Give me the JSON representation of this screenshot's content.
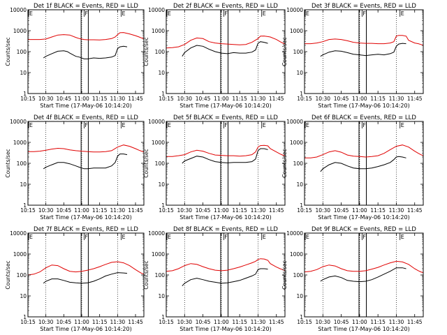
{
  "chart_data": {
    "type": "line",
    "layout": "3x3 grid of panels",
    "x_ticks": [
      "10:15",
      "10:30",
      "10:45",
      "11:00",
      "11:15",
      "11:30",
      "11:45"
    ],
    "x_tick_minutes": [
      15,
      30,
      45,
      60,
      75,
      90,
      105
    ],
    "xlim_minutes": [
      15,
      112
    ],
    "xlabel": "Start Time (17-May-06 10:14:20)",
    "ylabel": "Counts/sec",
    "yscale": "log",
    "ylim": [
      1,
      10000
    ],
    "y_ticks": [
      "1",
      "10",
      "100",
      "1000",
      "10000"
    ],
    "y_tick_values": [
      1,
      10,
      100,
      1000,
      10000
    ],
    "colors": {
      "events": "#000000",
      "lld": "#e00000",
      "axes": "#000000"
    },
    "markers": [
      {
        "label": "E",
        "minute": 15.5
      },
      {
        "label": "F",
        "minute": 62
      },
      {
        "label": "E",
        "minute": 93
      }
    ],
    "night_window_minutes": [
      59.5,
      65.5
    ],
    "dotted_lines_minutes": [
      30,
      60,
      90
    ],
    "panels": [
      {
        "title": "Det 1f BLACK = Events, RED = LLD",
        "series": [
          {
            "name": "LLD",
            "color": "#e00000",
            "x": [
              15,
              20,
              25,
              30,
              35,
              40,
              45,
              50,
              55,
              58,
              62,
              65,
              70,
              75,
              80,
              85,
              88,
              90,
              92,
              95,
              100,
              105,
              108,
              110,
              112
            ],
            "values": [
              380,
              380,
              380,
              400,
              500,
              620,
              650,
              620,
              480,
              420,
              380,
              370,
              370,
              360,
              380,
              420,
              500,
              650,
              800,
              820,
              700,
              580,
              500,
              450,
              420
            ]
          },
          {
            "name": "Events",
            "color": "#000000",
            "x": [
              28,
              30,
              35,
              40,
              45,
              48,
              50,
              55,
              58,
              62,
              65,
              70,
              75,
              80,
              85,
              88,
              90,
              92,
              95,
              98
            ],
            "values": [
              50,
              60,
              80,
              105,
              110,
              100,
              85,
              60,
              55,
              45,
              45,
              50,
              48,
              50,
              55,
              65,
              140,
              170,
              180,
              170
            ]
          }
        ]
      },
      {
        "title": "Det 2f BLACK = Events, RED = LLD",
        "series": [
          {
            "name": "LLD",
            "color": "#e00000",
            "x": [
              15,
              20,
              25,
              30,
              35,
              40,
              45,
              50,
              55,
              60,
              65,
              70,
              75,
              80,
              85,
              90,
              92,
              95,
              100,
              105,
              108,
              110,
              112
            ],
            "values": [
              150,
              155,
              170,
              220,
              350,
              450,
              420,
              300,
              260,
              240,
              230,
              220,
              210,
              220,
              280,
              420,
              550,
              560,
              500,
              380,
              300,
              260,
              230
            ]
          },
          {
            "name": "Events",
            "color": "#000000",
            "x": [
              28,
              30,
              35,
              40,
              45,
              50,
              55,
              60,
              65,
              70,
              75,
              80,
              85,
              88,
              90,
              92,
              95,
              98
            ],
            "values": [
              60,
              90,
              150,
              200,
              180,
              130,
              100,
              85,
              80,
              90,
              85,
              85,
              95,
              120,
              250,
              300,
              280,
              250
            ]
          }
        ]
      },
      {
        "title": "Det 3f BLACK = Events, RED = LLD",
        "series": [
          {
            "name": "LLD",
            "color": "#e00000",
            "x": [
              15,
              20,
              25,
              30,
              35,
              40,
              45,
              50,
              55,
              60,
              65,
              70,
              75,
              80,
              85,
              88,
              90,
              92,
              95,
              98,
              100,
              105,
              108,
              110,
              112
            ],
            "values": [
              240,
              240,
              260,
              300,
              380,
              400,
              380,
              330,
              280,
              260,
              250,
              250,
              240,
              240,
              260,
              300,
              550,
              600,
              600,
              550,
              350,
              260,
              240,
              220,
              200
            ]
          },
          {
            "name": "Events",
            "color": "#000000",
            "x": [
              28,
              30,
              35,
              40,
              45,
              50,
              55,
              60,
              65,
              70,
              75,
              80,
              85,
              88,
              90,
              92,
              95,
              98
            ],
            "values": [
              60,
              70,
              95,
              110,
              105,
              90,
              75,
              70,
              65,
              70,
              75,
              70,
              80,
              95,
              180,
              230,
              250,
              240
            ]
          }
        ]
      },
      {
        "title": "Det 4f BLACK = Events, RED = LLD",
        "series": [
          {
            "name": "LLD",
            "color": "#e00000",
            "x": [
              15,
              20,
              25,
              30,
              35,
              40,
              45,
              50,
              55,
              60,
              65,
              70,
              75,
              80,
              85,
              90,
              95,
              100,
              105,
              108,
              110,
              112
            ],
            "values": [
              360,
              360,
              380,
              420,
              480,
              520,
              500,
              440,
              400,
              380,
              360,
              350,
              350,
              360,
              400,
              600,
              750,
              650,
              500,
              420,
              380,
              350
            ]
          },
          {
            "name": "Events",
            "color": "#000000",
            "x": [
              28,
              30,
              35,
              40,
              45,
              50,
              55,
              58,
              62,
              65,
              70,
              75,
              80,
              85,
              88,
              90,
              92,
              95,
              98
            ],
            "values": [
              55,
              65,
              85,
              110,
              110,
              95,
              75,
              65,
              55,
              55,
              60,
              60,
              60,
              75,
              110,
              220,
              280,
              280,
              260
            ]
          }
        ]
      },
      {
        "title": "Det 5f BLACK = Events, RED = LLD",
        "series": [
          {
            "name": "LLD",
            "color": "#e00000",
            "x": [
              15,
              20,
              25,
              30,
              35,
              40,
              45,
              50,
              55,
              60,
              65,
              70,
              75,
              80,
              85,
              88,
              90,
              92,
              95,
              98,
              100,
              105,
              108,
              110,
              112
            ],
            "values": [
              210,
              210,
              230,
              260,
              350,
              420,
              380,
              300,
              250,
              240,
              230,
              230,
              220,
              230,
              260,
              350,
              600,
              700,
              720,
              680,
              500,
              350,
              280,
              250,
              230
            ]
          },
          {
            "name": "Events",
            "color": "#000000",
            "x": [
              28,
              30,
              35,
              40,
              45,
              50,
              55,
              60,
              65,
              70,
              75,
              80,
              85,
              88,
              90,
              92,
              95,
              98
            ],
            "values": [
              100,
              130,
              170,
              220,
              200,
              150,
              120,
              110,
              105,
              110,
              110,
              110,
              120,
              160,
              400,
              500,
              500,
              450
            ]
          }
        ]
      },
      {
        "title": "Det 6f BLACK = Events, RED = LLD",
        "series": [
          {
            "name": "LLD",
            "color": "#e00000",
            "x": [
              15,
              20,
              25,
              30,
              35,
              40,
              45,
              50,
              55,
              60,
              65,
              70,
              75,
              80,
              85,
              90,
              95,
              100,
              105,
              108,
              110,
              112
            ],
            "values": [
              180,
              180,
              200,
              260,
              350,
              400,
              340,
              250,
              220,
              210,
              200,
              210,
              230,
              300,
              450,
              650,
              750,
              600,
              380,
              300,
              260,
              230
            ]
          },
          {
            "name": "Events",
            "color": "#000000",
            "x": [
              28,
              30,
              35,
              40,
              45,
              50,
              55,
              60,
              65,
              70,
              75,
              80,
              85,
              88,
              90,
              92,
              95,
              98
            ],
            "values": [
              40,
              55,
              85,
              110,
              100,
              75,
              60,
              55,
              55,
              60,
              70,
              85,
              110,
              150,
              200,
              210,
              200,
              180
            ]
          }
        ]
      },
      {
        "title": "Det 7f BLACK = Events, RED = LLD",
        "series": [
          {
            "name": "LLD",
            "color": "#e00000",
            "x": [
              15,
              20,
              25,
              30,
              35,
              40,
              45,
              50,
              55,
              60,
              65,
              70,
              75,
              80,
              85,
              90,
              95,
              100,
              105,
              108,
              110,
              112
            ],
            "values": [
              100,
              110,
              140,
              220,
              300,
              280,
              200,
              150,
              140,
              150,
              170,
              200,
              250,
              320,
              400,
              430,
              380,
              280,
              180,
              140,
              120,
              110
            ]
          },
          {
            "name": "Events",
            "color": "#000000",
            "x": [
              28,
              30,
              35,
              40,
              45,
              50,
              55,
              60,
              65,
              70,
              75,
              80,
              85,
              90,
              95,
              98
            ],
            "values": [
              40,
              50,
              65,
              65,
              55,
              45,
              42,
              40,
              42,
              50,
              65,
              90,
              110,
              130,
              125,
              120
            ]
          }
        ]
      },
      {
        "title": "Det 8f BLACK = Events, RED = LLD",
        "series": [
          {
            "name": "LLD",
            "color": "#e00000",
            "x": [
              15,
              20,
              25,
              30,
              35,
              40,
              45,
              50,
              55,
              60,
              65,
              70,
              75,
              80,
              85,
              88,
              90,
              92,
              95,
              98,
              100,
              105,
              108,
              110,
              112
            ],
            "values": [
              150,
              160,
              200,
              280,
              350,
              320,
              250,
              200,
              170,
              160,
              170,
              200,
              240,
              300,
              380,
              450,
              550,
              600,
              580,
              500,
              350,
              240,
              200,
              180,
              160
            ]
          },
          {
            "name": "Events",
            "color": "#000000",
            "x": [
              28,
              30,
              35,
              40,
              45,
              50,
              55,
              60,
              65,
              70,
              75,
              80,
              85,
              88,
              90,
              92,
              95,
              98
            ],
            "values": [
              30,
              40,
              60,
              70,
              60,
              50,
              45,
              40,
              42,
              48,
              55,
              70,
              90,
              110,
              180,
              200,
              200,
              190
            ]
          }
        ]
      },
      {
        "title": "Det 9f BLACK = Events, RED = LLD",
        "series": [
          {
            "name": "LLD",
            "color": "#e00000",
            "x": [
              15,
              20,
              25,
              30,
              35,
              40,
              45,
              50,
              55,
              60,
              65,
              70,
              75,
              80,
              85,
              90,
              95,
              100,
              105,
              108,
              110,
              112
            ],
            "values": [
              140,
              150,
              180,
              250,
              300,
              270,
              200,
              160,
              150,
              150,
              160,
              190,
              230,
              300,
              380,
              450,
              420,
              320,
              200,
              160,
              140,
              130
            ]
          },
          {
            "name": "Events",
            "color": "#000000",
            "x": [
              28,
              30,
              35,
              40,
              45,
              50,
              55,
              60,
              65,
              70,
              75,
              80,
              85,
              90,
              95,
              98
            ],
            "values": [
              50,
              60,
              80,
              90,
              75,
              55,
              50,
              48,
              50,
              60,
              80,
              110,
              150,
              220,
              220,
              200
            ]
          }
        ]
      }
    ]
  }
}
